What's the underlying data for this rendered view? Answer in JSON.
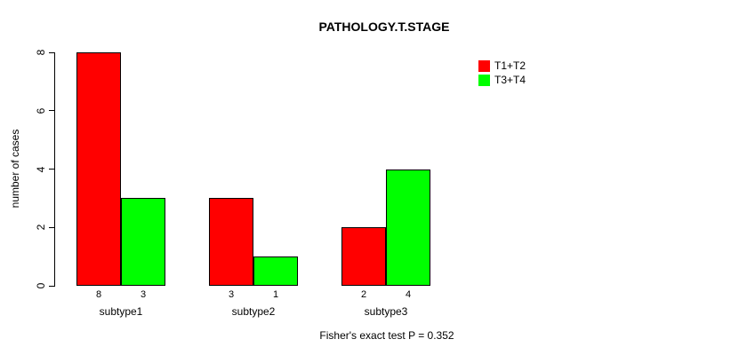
{
  "title": "PATHOLOGY.T.STAGE",
  "footer_note": "Fisher's exact test P = 0.352",
  "chart_data": {
    "type": "bar",
    "title": "PATHOLOGY.T.STAGE",
    "xlabel": "",
    "ylabel": "number of cases",
    "categories": [
      "subtype1",
      "subtype2",
      "subtype3"
    ],
    "series": [
      {
        "name": "T1+T2",
        "color": "#ff0000",
        "values": [
          8,
          3,
          2
        ]
      },
      {
        "name": "T3+T4",
        "color": "#00ff00",
        "values": [
          3,
          1,
          4
        ]
      }
    ],
    "bar_value_labels": [
      [
        8,
        3
      ],
      [
        3,
        1
      ],
      [
        2,
        4
      ]
    ],
    "ylim": [
      0,
      8
    ],
    "yticks": [
      0,
      2,
      4,
      6,
      8
    ],
    "grid": false,
    "legend_position": "top-right",
    "annotation": "Fisher's exact test P = 0.352"
  }
}
